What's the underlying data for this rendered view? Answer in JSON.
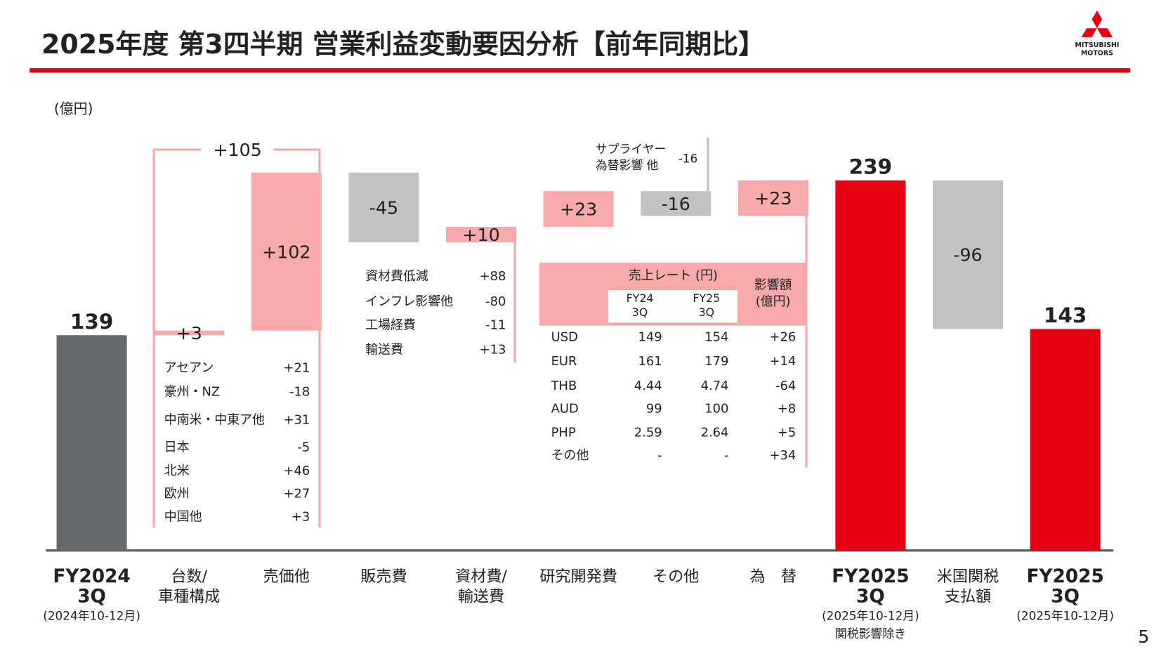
{
  "header": {
    "title": "2025年度 第3四半期 営業利益変動要因分析【前年同期比】",
    "logo": [
      "MITSUBISHI",
      "MOTORS"
    ],
    "page_number": "5"
  },
  "chart_data": {
    "type": "waterfall",
    "unit": "(億円)",
    "categories": [
      [
        "FY2024",
        "3Q"
      ],
      [
        "台数/",
        "車種構成"
      ],
      [
        "売価他"
      ],
      [
        "販売費"
      ],
      [
        "資材費/",
        "輸送費"
      ],
      [
        "研究開発費"
      ],
      [
        "その他"
      ],
      [
        "為　替"
      ],
      [
        "FY2025",
        "3Q"
      ],
      [
        "米国関税",
        "支払額"
      ],
      [
        "FY2025",
        "3Q"
      ]
    ],
    "category_notes": [
      [
        "(2024年10-12月)"
      ],
      null,
      null,
      null,
      null,
      null,
      null,
      null,
      [
        "(2025年10-12月)",
        "関税影響除き"
      ],
      null,
      [
        "(2025年10-12月)"
      ]
    ],
    "measures": [
      "total",
      "relative",
      "relative",
      "relative",
      "relative",
      "relative",
      "relative",
      "relative",
      "total",
      "relative",
      "total"
    ],
    "values": [
      139,
      3,
      102,
      -45,
      10,
      23,
      -16,
      23,
      239,
      -96,
      143
    ],
    "value_labels": [
      "139",
      "+3",
      "+102",
      "-45",
      "+10",
      "+23",
      "-16",
      "+23",
      "239",
      "-96",
      "143"
    ],
    "colors": [
      "#66696c",
      "#f7a9ab",
      "#f7a9ab",
      "#c0c2c4",
      "#f7a9ab",
      "#f7a9ab",
      "#c0c2c4",
      "#f7a9ab",
      "#e60012",
      "#c0c2c4",
      "#e60012"
    ],
    "ylim": [
      0,
      310
    ],
    "group_total": {
      "value": 105,
      "label": "+105"
    },
    "annotation": {
      "lines": [
        "サプライヤー",
        "為替影響 他"
      ],
      "label": "-16"
    }
  },
  "volume_table": [
    [
      "アセアン",
      "+21"
    ],
    [
      "豪州・NZ",
      "-18"
    ],
    [
      "中南米・中東ア他",
      "+31"
    ],
    [
      "日本",
      "-5"
    ],
    [
      "北米",
      "+46"
    ],
    [
      "欧州",
      "+27"
    ],
    [
      "中国他",
      "+3"
    ]
  ],
  "cost_table": [
    [
      "資材費低減",
      "+88"
    ],
    [
      "インフレ影響他",
      "-80"
    ],
    [
      "工場経費",
      "-11"
    ],
    [
      "輸送費",
      "+13"
    ]
  ],
  "fx_table": {
    "header": "売上レート (円)",
    "columns": [
      [
        "FY24",
        "3Q"
      ],
      [
        "FY25",
        "3Q"
      ]
    ],
    "impact_header": [
      "影響額",
      "(億円)"
    ],
    "rows": [
      [
        "USD",
        "149",
        "154",
        "+26"
      ],
      [
        "EUR",
        "161",
        "179",
        "+14"
      ],
      [
        "THB",
        "4.44",
        "4.74",
        "-64"
      ],
      [
        "AUD",
        "99",
        "100",
        "+8"
      ],
      [
        "PHP",
        "2.59",
        "2.64",
        "+5"
      ],
      [
        "その他",
        "-",
        "-",
        "+34"
      ]
    ]
  }
}
